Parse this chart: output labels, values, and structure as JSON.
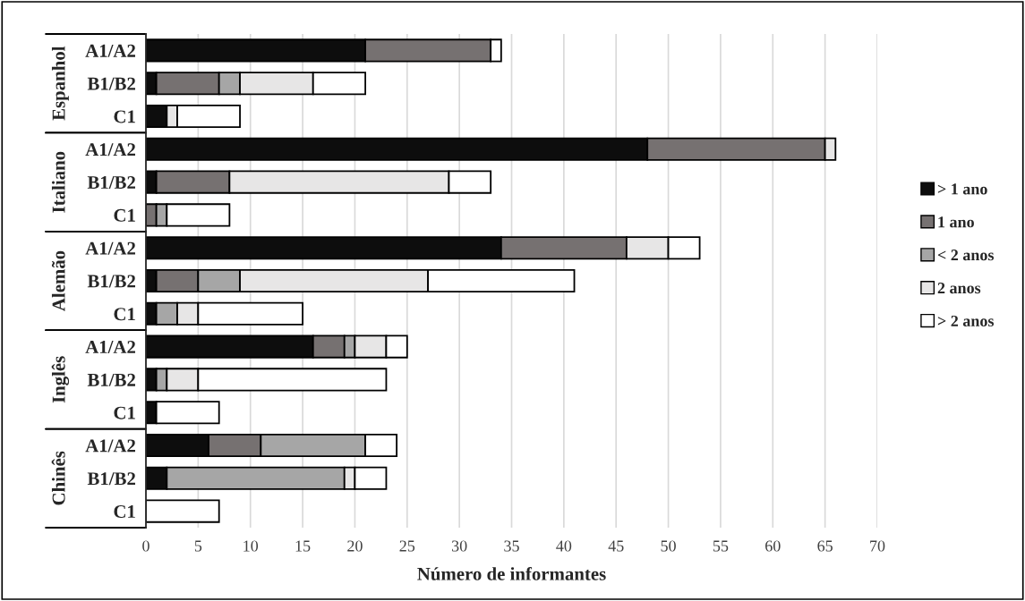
{
  "chart_data": {
    "type": "bar",
    "orientation": "horizontal",
    "stacked": true,
    "xlabel": "Número de informantes",
    "categories": [
      "A1/A2",
      "B1/B2",
      "C1",
      "A1/A2",
      "B1/B2",
      "C1",
      "A1/A2",
      "B1/B2",
      "C1",
      "A1/A2",
      "B1/B2",
      "C1",
      "A1/A2",
      "B1/B2",
      "C1"
    ],
    "annotations": [
      "Espanhol",
      "Italiano",
      "Alemão",
      "Inglês",
      "Chinês"
    ],
    "series": [
      {
        "name": "> 1 ano",
        "color": "#0d0d0d",
        "values": [
          21,
          1,
          2,
          48,
          1,
          0,
          34,
          1,
          1,
          16,
          1,
          1,
          6,
          2,
          0
        ]
      },
      {
        "name": "1 ano",
        "color": "#767171",
        "values": [
          12,
          6,
          0,
          17,
          7,
          1,
          12,
          4,
          0,
          3,
          0,
          0,
          5,
          0,
          0
        ]
      },
      {
        "name": "< 2 anos",
        "color": "#a6a6a6",
        "values": [
          0,
          2,
          0,
          0,
          0,
          1,
          0,
          4,
          2,
          1,
          1,
          0,
          10,
          17,
          0
        ]
      },
      {
        "name": "2 anos",
        "color": "#e7e6e6",
        "values": [
          0,
          7,
          1,
          1,
          21,
          0,
          4,
          18,
          2,
          3,
          3,
          0,
          0,
          1,
          0
        ]
      },
      {
        "name": "> 2 anos",
        "color": "#ffffff",
        "values": [
          1,
          5,
          6,
          0,
          4,
          6,
          3,
          14,
          10,
          2,
          18,
          6,
          3,
          3,
          7
        ]
      }
    ],
    "xlim": [
      0,
      70
    ],
    "xticks": [
      0,
      5,
      10,
      15,
      20,
      25,
      30,
      35,
      40,
      45,
      50,
      55,
      60,
      65,
      70
    ],
    "grid": "x",
    "legend": "right"
  }
}
